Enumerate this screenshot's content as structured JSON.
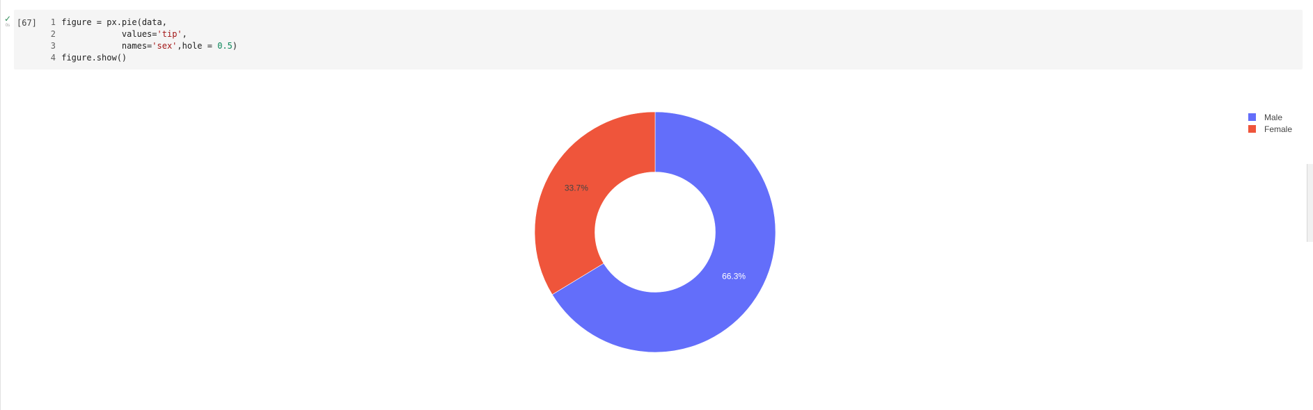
{
  "cell": {
    "status_icon": "check-icon",
    "exec_count": "[67]",
    "lines": [
      {
        "num": "1",
        "tokens": [
          {
            "t": "figure = px.pie(data,",
            "c": "plain"
          }
        ]
      },
      {
        "num": "2",
        "tokens": [
          {
            "t": "            values=",
            "c": "plain"
          },
          {
            "t": "'tip'",
            "c": "str"
          },
          {
            "t": ",",
            "c": "plain"
          }
        ]
      },
      {
        "num": "3",
        "tokens": [
          {
            "t": "            names=",
            "c": "plain"
          },
          {
            "t": "'sex'",
            "c": "str"
          },
          {
            "t": ",hole = ",
            "c": "plain"
          },
          {
            "t": "0.5",
            "c": "num"
          },
          {
            "t": ")",
            "c": "plain"
          }
        ]
      },
      {
        "num": "4",
        "tokens": [
          {
            "t": "figure.show()",
            "c": "plain"
          }
        ]
      }
    ]
  },
  "colors": {
    "male": "#636efa",
    "female": "#ef553b",
    "string": "#a31515",
    "number": "#098658"
  },
  "chart_data": {
    "type": "pie",
    "hole": 0.5,
    "categories": [
      "Male",
      "Female"
    ],
    "values": [
      66.3,
      33.7
    ],
    "labels": [
      "66.3%",
      "33.7%"
    ],
    "colors": [
      "#636efa",
      "#ef553b"
    ],
    "label_colors": [
      "#ffffff",
      "#444444"
    ],
    "legend": {
      "placement": "top-right",
      "entries": [
        "Male",
        "Female"
      ]
    }
  }
}
